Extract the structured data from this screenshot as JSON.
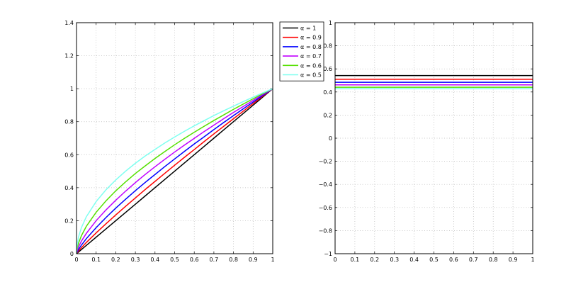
{
  "chart_data": [
    {
      "type": "line",
      "title": "",
      "xlabel": "",
      "ylabel": "",
      "xlim": [
        0,
        1
      ],
      "ylim": [
        0,
        1.4
      ],
      "xticks": [
        "0",
        "0.1",
        "0.2",
        "0.3",
        "0.4",
        "0.5",
        "0.6",
        "0.7",
        "0.8",
        "0.9",
        "1"
      ],
      "yticks": [
        "0",
        "0.2",
        "0.4",
        "0.6",
        "0.8",
        "1",
        "1.2",
        "1.4"
      ],
      "grid": true,
      "legend_position": "outside-right",
      "x": [
        0,
        0.0025,
        0.01,
        0.025,
        0.05,
        0.1,
        0.15,
        0.2,
        0.25,
        0.3,
        0.35,
        0.4,
        0.45,
        0.5,
        0.55,
        0.6,
        0.65,
        0.7,
        0.75,
        0.8,
        0.85,
        0.9,
        0.95,
        1
      ],
      "series": [
        {
          "name": "α = 1",
          "color": "#000000",
          "values": [
            0,
            0.0025,
            0.01,
            0.025,
            0.05,
            0.1,
            0.15,
            0.2,
            0.25,
            0.3,
            0.35,
            0.4,
            0.45,
            0.5,
            0.55,
            0.6,
            0.65,
            0.7,
            0.75,
            0.8,
            0.85,
            0.9,
            0.95,
            1
          ]
        },
        {
          "name": "α = 0.9",
          "color": "#ff0000",
          "values": [
            0,
            0.0046,
            0.016,
            0.036,
            0.068,
            0.126,
            0.181,
            0.235,
            0.287,
            0.338,
            0.389,
            0.438,
            0.487,
            0.536,
            0.584,
            0.631,
            0.679,
            0.726,
            0.772,
            0.818,
            0.864,
            0.91,
            0.955,
            1
          ]
        },
        {
          "name": "α = 0.8",
          "color": "#0000ff",
          "values": [
            0,
            0.0084,
            0.025,
            0.052,
            0.091,
            0.158,
            0.219,
            0.276,
            0.33,
            0.382,
            0.432,
            0.48,
            0.528,
            0.574,
            0.62,
            0.665,
            0.708,
            0.752,
            0.795,
            0.837,
            0.878,
            0.919,
            0.96,
            1
          ]
        },
        {
          "name": "α = 0.7",
          "color": "#c000ff",
          "values": [
            0,
            0.015,
            0.04,
            0.076,
            0.123,
            0.2,
            0.265,
            0.324,
            0.379,
            0.431,
            0.48,
            0.527,
            0.572,
            0.616,
            0.658,
            0.699,
            0.74,
            0.779,
            0.818,
            0.856,
            0.892,
            0.929,
            0.965,
            1
          ]
        },
        {
          "name": "α = 0.6",
          "color": "#55e000",
          "values": [
            0,
            0.028,
            0.063,
            0.109,
            0.166,
            0.251,
            0.32,
            0.381,
            0.435,
            0.486,
            0.532,
            0.577,
            0.619,
            0.66,
            0.699,
            0.736,
            0.772,
            0.807,
            0.841,
            0.875,
            0.907,
            0.939,
            0.97,
            1
          ]
        },
        {
          "name": "α = 0.5",
          "color": "#7ffff0",
          "values": [
            0,
            0.05,
            0.1,
            0.158,
            0.224,
            0.316,
            0.387,
            0.447,
            0.5,
            0.548,
            0.592,
            0.632,
            0.671,
            0.707,
            0.742,
            0.775,
            0.806,
            0.837,
            0.866,
            0.894,
            0.922,
            0.949,
            0.975,
            1
          ]
        }
      ]
    },
    {
      "type": "line",
      "title": "",
      "xlabel": "",
      "ylabel": "",
      "xlim": [
        0,
        1
      ],
      "ylim": [
        -1,
        1
      ],
      "xticks": [
        "0",
        "0.1",
        "0.2",
        "0.3",
        "0.4",
        "0.5",
        "0.6",
        "0.7",
        "0.8",
        "0.9",
        "1"
      ],
      "yticks": [
        "−1",
        "−0.8",
        "−0.6",
        "−0.4",
        "−0.2",
        "0",
        "0.2",
        "0.4",
        "0.6",
        "0.8",
        "1"
      ],
      "grid": true,
      "x": [
        0,
        1
      ],
      "series": [
        {
          "color": "#000000",
          "values": [
            0.542,
            0.542
          ]
        },
        {
          "color": "#ff0000",
          "values": [
            0.51,
            0.51
          ]
        },
        {
          "color": "#0000ff",
          "values": [
            0.484,
            0.484
          ]
        },
        {
          "color": "#c000ff",
          "values": [
            0.462,
            0.462
          ]
        },
        {
          "color": "#55e000",
          "values": [
            0.441,
            0.441
          ]
        },
        {
          "color": "#7ffff0",
          "values": [
            0.428,
            0.428
          ]
        }
      ]
    }
  ]
}
